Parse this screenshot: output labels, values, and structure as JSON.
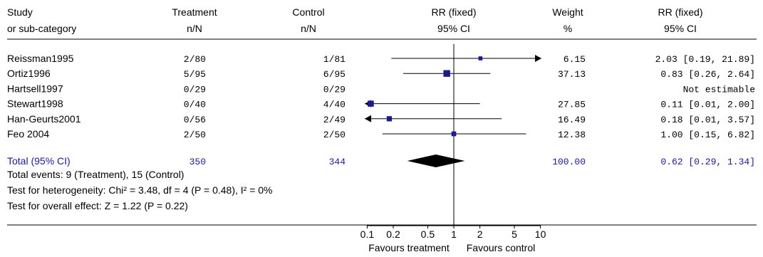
{
  "header": {
    "study": "Study",
    "subcategory": "or sub-category",
    "treatment": "Treatment",
    "treatment_sub": "n/N",
    "control": "Control",
    "control_sub": "n/N",
    "rr_plot": "RR (fixed)",
    "rr_plot_sub": "95% CI",
    "weight": "Weight",
    "weight_sub": "%",
    "rr_text": "RR (fixed)",
    "rr_text_sub": "95% CI"
  },
  "studies": [
    {
      "name": "Reissman1995",
      "treatment": "2/80",
      "control": "1/81",
      "weight": "6.15",
      "ci_text": "2.03 [0.19, 21.89]"
    },
    {
      "name": "Ortiz1996",
      "treatment": "5/95",
      "control": "6/95",
      "weight": "37.13",
      "ci_text": "0.83 [0.26, 2.64]"
    },
    {
      "name": "Hartsell1997",
      "treatment": "0/29",
      "control": "0/29",
      "weight": "",
      "ci_text": "Not estimable"
    },
    {
      "name": "Stewart1998",
      "treatment": "0/40",
      "control": "4/40",
      "weight": "27.85",
      "ci_text": "0.11 [0.01, 2.00]"
    },
    {
      "name": "Han-Geurts2001",
      "treatment": "0/56",
      "control": "2/49",
      "weight": "16.49",
      "ci_text": "0.18 [0.01, 3.57]"
    },
    {
      "name": "Feo 2004",
      "treatment": "2/50",
      "control": "2/50",
      "weight": "12.38",
      "ci_text": "1.00 [0.15, 6.82]"
    }
  ],
  "total": {
    "label": "Total (95% CI)",
    "treatment": "350",
    "control": "344",
    "weight": "100.00",
    "ci_text": "0.62 [0.29, 1.34]"
  },
  "footnotes": [
    "Total events: 9 (Treatment), 15 (Control)",
    "Test for heterogeneity: Chi² = 3.48, df = 4 (P = 0.48), I² = 0%",
    "Test for overall effect: Z = 1.22 (P = 0.22)"
  ],
  "axis": {
    "favours_left": "Favours treatment",
    "favours_right": "Favours control"
  },
  "colors": {
    "marker": "#1a1a8c",
    "summary_text": "#1a1a8c",
    "diamond": "#000000",
    "line": "#000000"
  },
  "chart_data": {
    "type": "forest",
    "scale": "log",
    "xlim": [
      0.1,
      10
    ],
    "ticks": [
      0.1,
      0.2,
      0.5,
      1,
      2,
      5,
      10
    ],
    "tick_labels": [
      "0.1",
      "0.2",
      "0.5",
      "1",
      "2",
      "5",
      "10"
    ],
    "studies": [
      {
        "name": "Reissman1995",
        "rr": 2.03,
        "lo": 0.19,
        "hi": 21.89,
        "weight": 6.15
      },
      {
        "name": "Ortiz1996",
        "rr": 0.83,
        "lo": 0.26,
        "hi": 2.64,
        "weight": 37.13
      },
      {
        "name": "Hartsell1997",
        "rr": null,
        "lo": null,
        "hi": null,
        "weight": null
      },
      {
        "name": "Stewart1998",
        "rr": 0.11,
        "lo": 0.01,
        "hi": 2.0,
        "weight": 27.85
      },
      {
        "name": "Han-Geurts2001",
        "rr": 0.18,
        "lo": 0.01,
        "hi": 3.57,
        "weight": 16.49
      },
      {
        "name": "Feo 2004",
        "rr": 1.0,
        "lo": 0.15,
        "hi": 6.82,
        "weight": 12.38
      }
    ],
    "pooled": {
      "rr": 0.62,
      "lo": 0.29,
      "hi": 1.34
    }
  }
}
